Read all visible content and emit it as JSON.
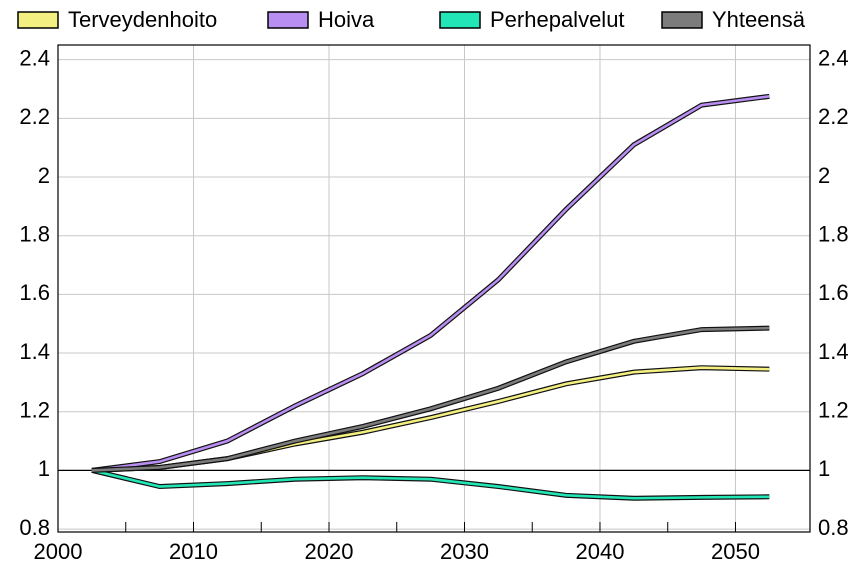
{
  "chart_data": {
    "type": "line",
    "x": [
      2002.5,
      2007.5,
      2012.5,
      2017.5,
      2022.5,
      2027.5,
      2032.5,
      2037.5,
      2042.5,
      2047.5,
      2052.5
    ],
    "series": [
      {
        "name": "Terveydenhoito",
        "color": "#f3ef80",
        "values": [
          1.0,
          1.01,
          1.04,
          1.09,
          1.13,
          1.18,
          1.235,
          1.295,
          1.335,
          1.35,
          1.345
        ]
      },
      {
        "name": "Hoiva",
        "color": "#b98ef2",
        "values": [
          1.0,
          1.03,
          1.1,
          1.22,
          1.33,
          1.46,
          1.65,
          1.89,
          2.11,
          2.245,
          2.275
        ]
      },
      {
        "name": "Perhepalvelut",
        "color": "#22e6b6",
        "values": [
          1.0,
          0.945,
          0.955,
          0.97,
          0.975,
          0.97,
          0.945,
          0.915,
          0.905,
          0.908,
          0.91
        ]
      },
      {
        "name": "Yhteensä",
        "color": "#7c7c7c",
        "values": [
          1.0,
          1.01,
          1.04,
          1.1,
          1.15,
          1.21,
          1.28,
          1.37,
          1.44,
          1.48,
          1.485
        ]
      }
    ],
    "xlim": [
      2000,
      2055.5
    ],
    "xticks": [
      2000,
      2010,
      2020,
      2030,
      2040,
      2050
    ],
    "xminorticks": [
      2005,
      2015,
      2025,
      2035,
      2045
    ],
    "ylim": [
      0.79,
      2.45
    ],
    "yticks": [
      0.8,
      1,
      1.2,
      1.4,
      1.6,
      1.8,
      2,
      2.2,
      2.4
    ],
    "reference_line": 1,
    "grid": true
  }
}
